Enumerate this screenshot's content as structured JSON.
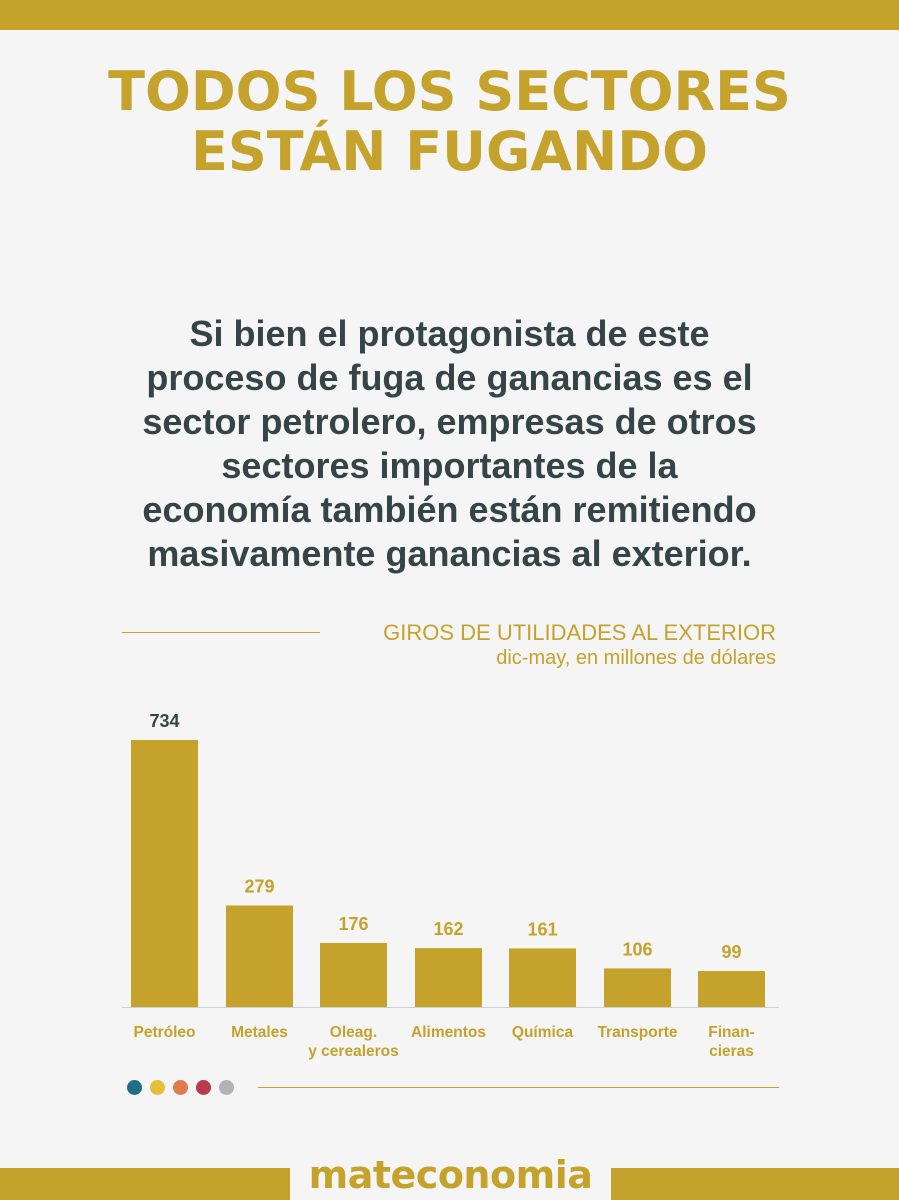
{
  "header": {
    "title_lines": [
      "TODOS LOS SECTORES",
      "ESTÁN FUGANDO"
    ]
  },
  "intro": {
    "lines": [
      "Si bien el protagonista de este",
      "proceso de fuga de ganancias es el",
      "sector petrolero, empresas de otros",
      "sectores importantes de la",
      "economía también están remitiendo",
      "masivamente ganancias al exterior."
    ]
  },
  "chart_data": {
    "type": "bar",
    "title": "GIROS DE UTILIDADES AL EXTERIOR",
    "subtitle": "dic-may, en millones de dólares",
    "categories": [
      [
        "Petróleo"
      ],
      [
        "Metales"
      ],
      [
        "Oleag.",
        "y cerealeros"
      ],
      [
        "Alimentos"
      ],
      [
        "Química"
      ],
      [
        "Transporte"
      ],
      [
        "Finan-",
        "cieras"
      ]
    ],
    "values": [
      734,
      279,
      176,
      162,
      161,
      106,
      99
    ],
    "ylim": [
      0,
      734
    ],
    "grid": false,
    "legend": "none",
    "bar_color": "#c5a22c"
  },
  "footer": {
    "dot_colors": [
      "#1f6f83",
      "#e3c037",
      "#e07b4a",
      "#b83a4b",
      "#b3b3b3"
    ],
    "brand": "mateconomia"
  },
  "colors": {
    "accent": "#c5a22c",
    "text_dark": "#354447",
    "background": "#f5f5f5"
  }
}
